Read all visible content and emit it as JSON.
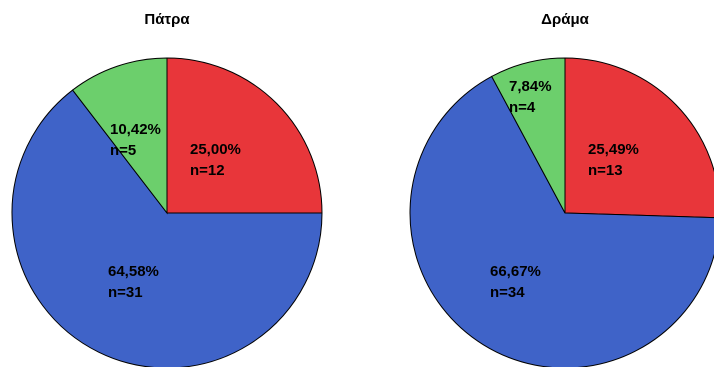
{
  "chart_data": [
    {
      "type": "pie",
      "title": "Πάτρα",
      "colors": [
        "#e8363a",
        "#3f63c8",
        "#6ccf6c"
      ],
      "slices": [
        {
          "value": 25.0,
          "percent_label": "25,00%",
          "n_label": "n=12",
          "color": "#e8363a"
        },
        {
          "value": 64.58,
          "percent_label": "64,58%",
          "n_label": "n=31",
          "color": "#3f63c8"
        },
        {
          "value": 10.42,
          "percent_label": "10,42%",
          "n_label": "n=5",
          "color": "#6ccf6c"
        }
      ]
    },
    {
      "type": "pie",
      "title": "Δράμα",
      "colors": [
        "#e8363a",
        "#3f63c8",
        "#6ccf6c"
      ],
      "slices": [
        {
          "value": 25.49,
          "percent_label": "25,49%",
          "n_label": "n=13",
          "color": "#e8363a"
        },
        {
          "value": 66.67,
          "percent_label": "66,67%",
          "n_label": "n=34",
          "color": "#3f63c8"
        },
        {
          "value": 7.84,
          "percent_label": "7,84%",
          "n_label": "n=4",
          "color": "#6ccf6c"
        }
      ]
    }
  ]
}
